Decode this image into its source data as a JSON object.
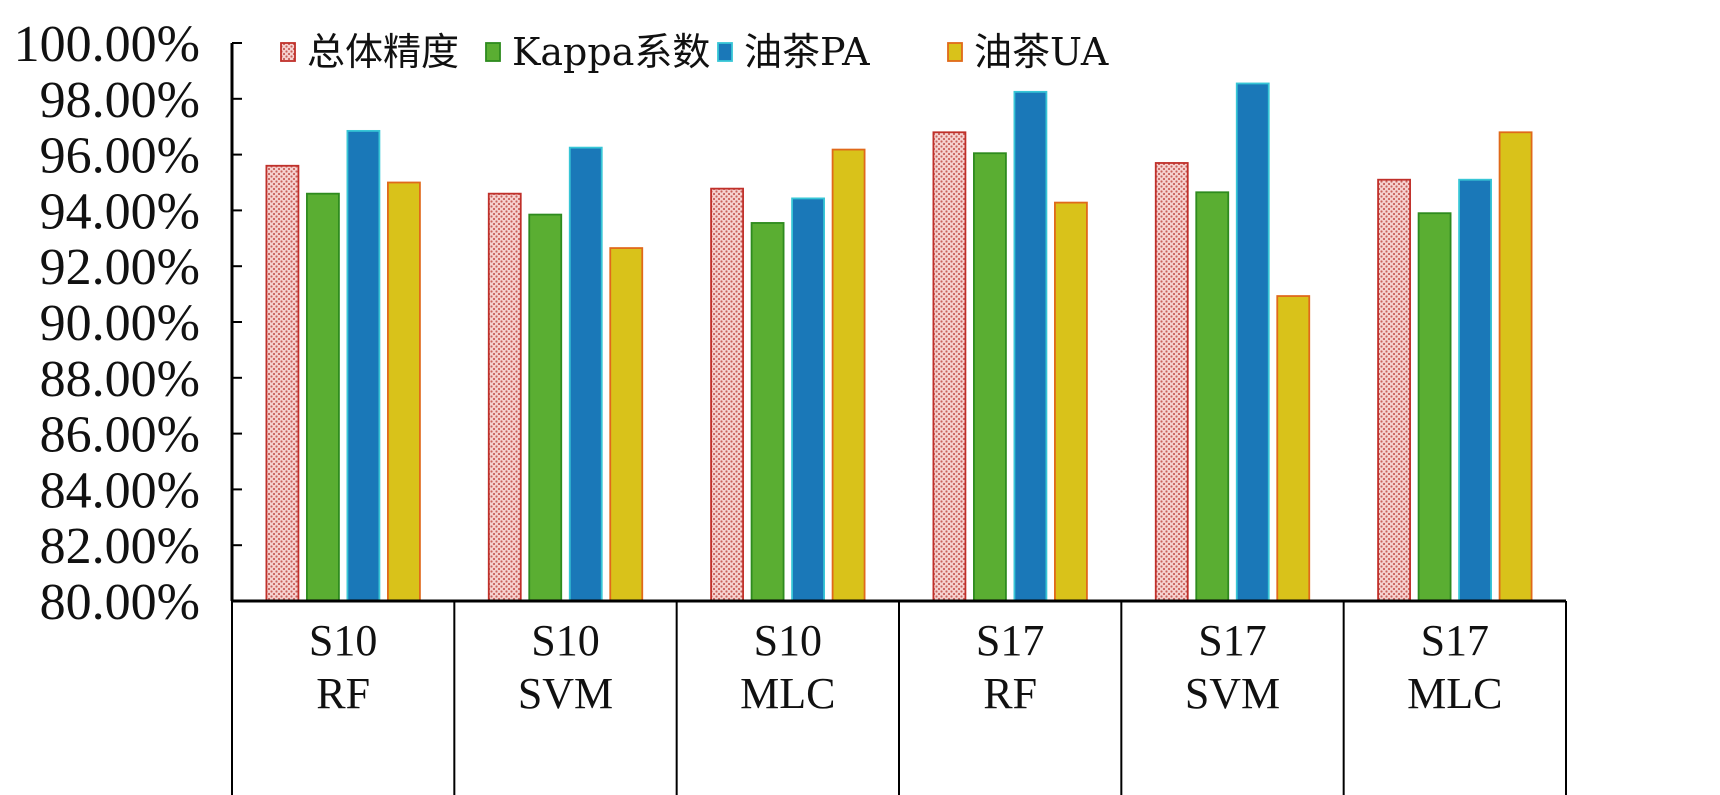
{
  "chart_data": {
    "type": "bar",
    "ylim": [
      0.8,
      1.0
    ],
    "y_ticks": [
      "80.00%",
      "82.00%",
      "84.00%",
      "86.00%",
      "88.00%",
      "90.00%",
      "92.00%",
      "94.00%",
      "96.00%",
      "98.00%",
      "100.00%"
    ],
    "categories": [
      {
        "line1": "S10",
        "line2": "RF"
      },
      {
        "line1": "S10",
        "line2": "SVM"
      },
      {
        "line1": "S10",
        "line2": "MLC"
      },
      {
        "line1": "S17",
        "line2": "RF"
      },
      {
        "line1": "S17",
        "line2": "SVM"
      },
      {
        "line1": "S17",
        "line2": "MLC"
      }
    ],
    "series": [
      {
        "name": "总体精度",
        "color": "#f2b8b5",
        "stroke": "#c0302a",
        "pattern": "dots",
        "values": [
          0.956,
          0.946,
          0.9478,
          0.968,
          0.957,
          0.951
        ]
      },
      {
        "name": "Kappa系数",
        "color": "#5aae32",
        "stroke": "#2e8b1e",
        "pattern": "none",
        "values": [
          0.946,
          0.9385,
          0.9355,
          0.9605,
          0.9465,
          0.939
        ]
      },
      {
        "name": "油茶PA",
        "color": "#1a78b8",
        "stroke": "#37c6d6",
        "pattern": "none",
        "values": [
          0.9685,
          0.9625,
          0.9443,
          0.9825,
          0.9855,
          0.951
        ]
      },
      {
        "name": "油茶UA",
        "color": "#d9c21a",
        "stroke": "#e0691a",
        "pattern": "none",
        "values": [
          0.95,
          0.9265,
          0.9618,
          0.9428,
          0.9093,
          0.968
        ]
      }
    ],
    "legend_position": "top",
    "grid": false
  }
}
